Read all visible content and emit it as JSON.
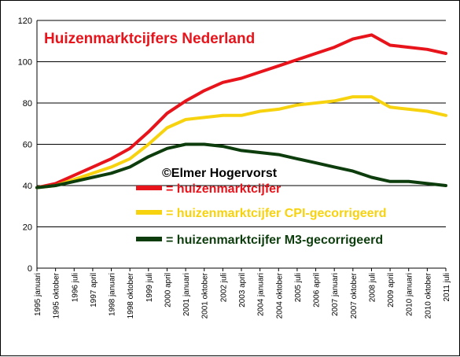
{
  "chart_data": {
    "type": "line",
    "title": "Huizenmarktcijfers Nederland",
    "annotation": "©Elmer Hogervorst",
    "ylim": [
      0,
      120
    ],
    "yticks": [
      0,
      20,
      40,
      60,
      80,
      100,
      120
    ],
    "grid": true,
    "legend_position": "center",
    "colors": {
      "title": "#e8141c",
      "grid": "#000000"
    },
    "x_ticks": [
      "1995 januari",
      "1995 oktober",
      "1996 juli",
      "1997 april",
      "1998 januari",
      "1998 oktober",
      "1999 juli",
      "2000 april",
      "2001 januari",
      "2001 oktober",
      "2002 juli",
      "2003 april",
      "2004 januari",
      "2004 oktober",
      "2005 juli",
      "2006 april",
      "2007 januari",
      "2007 oktober",
      "2008 juli",
      "2009 april",
      "2010 januari",
      "2010 oktober",
      "2011 juli"
    ],
    "x": [
      "1995 januari",
      "1995 oktober",
      "1996 juli",
      "1997 april",
      "1998 januari",
      "1998 oktober",
      "1999 juli",
      "2000 april",
      "2001 januari",
      "2001 oktober",
      "2002 juli",
      "2003 april",
      "2004 januari",
      "2004 oktober",
      "2005 juli",
      "2006 april",
      "2007 januari",
      "2007 oktober",
      "2008 juli",
      "2009 april",
      "2010 januari",
      "2010 oktober",
      "2011 juli"
    ],
    "series": [
      {
        "name": "= huizenmarktcijfer",
        "color": "#e8141c",
        "values": [
          39,
          41,
          45,
          49,
          53,
          58,
          66,
          75,
          81,
          86,
          90,
          92,
          95,
          98,
          101,
          104,
          107,
          111,
          113,
          108,
          107,
          106,
          104
        ]
      },
      {
        "name": "= huizenmarktcijfer CPI-gecorrigeerd",
        "color": "#f7d20e",
        "values": [
          39,
          40,
          43,
          46,
          49,
          53,
          60,
          68,
          72,
          73,
          74,
          74,
          76,
          77,
          79,
          80,
          81,
          83,
          83,
          78,
          77,
          76,
          74
        ]
      },
      {
        "name": "= huizenmarktcijfer M3-gecorrigeerd",
        "color": "#0d3d0d",
        "values": [
          39,
          40,
          42,
          44,
          46,
          49,
          54,
          58,
          60,
          60,
          59,
          57,
          56,
          55,
          53,
          51,
          49,
          47,
          44,
          42,
          42,
          41,
          40
        ]
      }
    ]
  }
}
